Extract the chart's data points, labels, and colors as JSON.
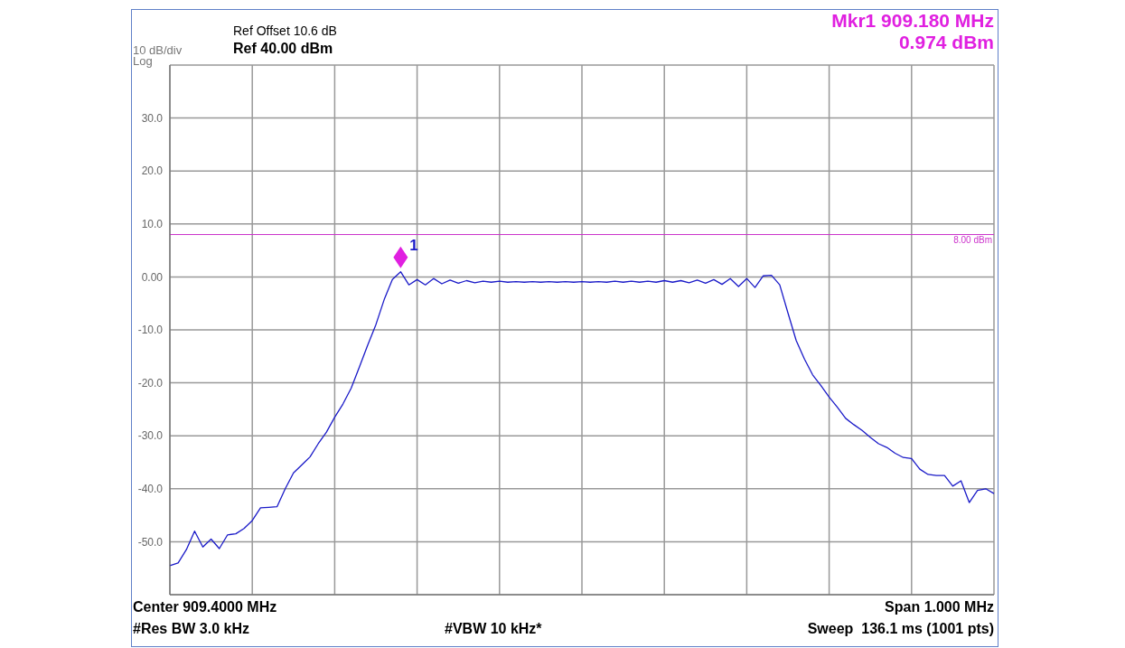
{
  "chart_data": {
    "type": "line",
    "color": "#1a1ac8",
    "grid": true,
    "marker": "none",
    "line_style": "solid",
    "tick_labels": "y",
    "categories": [
      null,
      null,
      null,
      null,
      null,
      null,
      null,
      null,
      null,
      null,
      null,
      null,
      null,
      null,
      null,
      null,
      null,
      null,
      null,
      null,
      null,
      null,
      null,
      null,
      null,
      null,
      null,
      null,
      null,
      null,
      null,
      null,
      null,
      null,
      null,
      null,
      null,
      null,
      null,
      null,
      null,
      null,
      null,
      null,
      null,
      null,
      null,
      null,
      null,
      null,
      null,
      null,
      null,
      null,
      null,
      null,
      null,
      null,
      null,
      null,
      null,
      null,
      null,
      null,
      null,
      null,
      null,
      null,
      null,
      null,
      null,
      null,
      null,
      null,
      null,
      null,
      null,
      null,
      null,
      null,
      null,
      null,
      null,
      null,
      null,
      null,
      null,
      null,
      null,
      null,
      null,
      null,
      null,
      null,
      null,
      null,
      null,
      null,
      null,
      null,
      null
    ],
    "ylim": [
      -60,
      40
    ],
    "yticks": [
      {
        "value": 40,
        "label": null
      },
      {
        "value": 30,
        "label": "30.0"
      },
      {
        "value": 20,
        "label": "20.0"
      },
      {
        "value": 10,
        "label": "10.0"
      },
      {
        "value": 0,
        "label": "0.00"
      },
      {
        "value": -10,
        "label": "-10.0"
      },
      {
        "value": -20,
        "label": "-20.0"
      },
      {
        "value": -30,
        "label": "-30.0"
      },
      {
        "value": -40,
        "label": "-40.0"
      },
      {
        "value": -50,
        "label": "-50.0"
      },
      {
        "value": -60,
        "label": null
      }
    ],
    "values": [
      -54.5,
      -54,
      -51.5,
      -48,
      -51,
      -49.5,
      -51.3,
      -48.7,
      -48.5,
      -47.5,
      -46,
      -43.6,
      -43.5,
      -43.4,
      -40,
      -37,
      -35.5,
      -34,
      -31.5,
      -29.3,
      -26.5,
      -24,
      -21,
      -17,
      -12.9,
      -9,
      -4.3,
      -0.5,
      0.974,
      -1.5,
      -0.5,
      -1.5,
      -0.3,
      -1.3,
      -0.6,
      -1.2,
      -0.7,
      -1.1,
      -0.8,
      -1,
      -0.8,
      -1,
      -0.9,
      -1,
      -0.9,
      -1,
      -0.9,
      -1,
      -0.9,
      -1,
      -0.9,
      -1,
      -0.9,
      -1,
      -0.8,
      -1,
      -0.8,
      -1,
      -0.8,
      -1,
      -0.7,
      -1,
      -0.7,
      -1.1,
      -0.6,
      -1.2,
      -0.5,
      -1.4,
      -0.3,
      -1.8,
      -0.3,
      -2,
      0.2,
      0.3,
      -1.5,
      -6.8,
      -12,
      -15.5,
      -18.5,
      -20.5,
      -22.7,
      -24.6,
      -26.7,
      -27.9,
      -29,
      -30.3,
      -31.5,
      -32.2,
      -33.3,
      -34.1,
      -34.3,
      -36.3,
      -37.3,
      -37.5,
      -37.5,
      -39.5,
      -38.5,
      -42.6,
      -40.3,
      -40,
      -40.9
    ],
    "ref_lines": [
      {
        "axis": "y",
        "value": 8,
        "label": "8.00 dBm",
        "color": "#cc33cc"
      }
    ],
    "annotations": [
      "Ref Offset 10.6 dB",
      "Ref 40.00 dBm",
      "10 dB/div",
      "Log",
      "Mkr1 909.180 MHz",
      "0.974 dBm",
      "Center 909.4000 MHz",
      "#Res BW 3.0 kHz",
      "#VBW 10 kHz*",
      "Span 1.000 MHz",
      "Sweep  136.1 ms (1001 pts)",
      "1"
    ]
  }
}
